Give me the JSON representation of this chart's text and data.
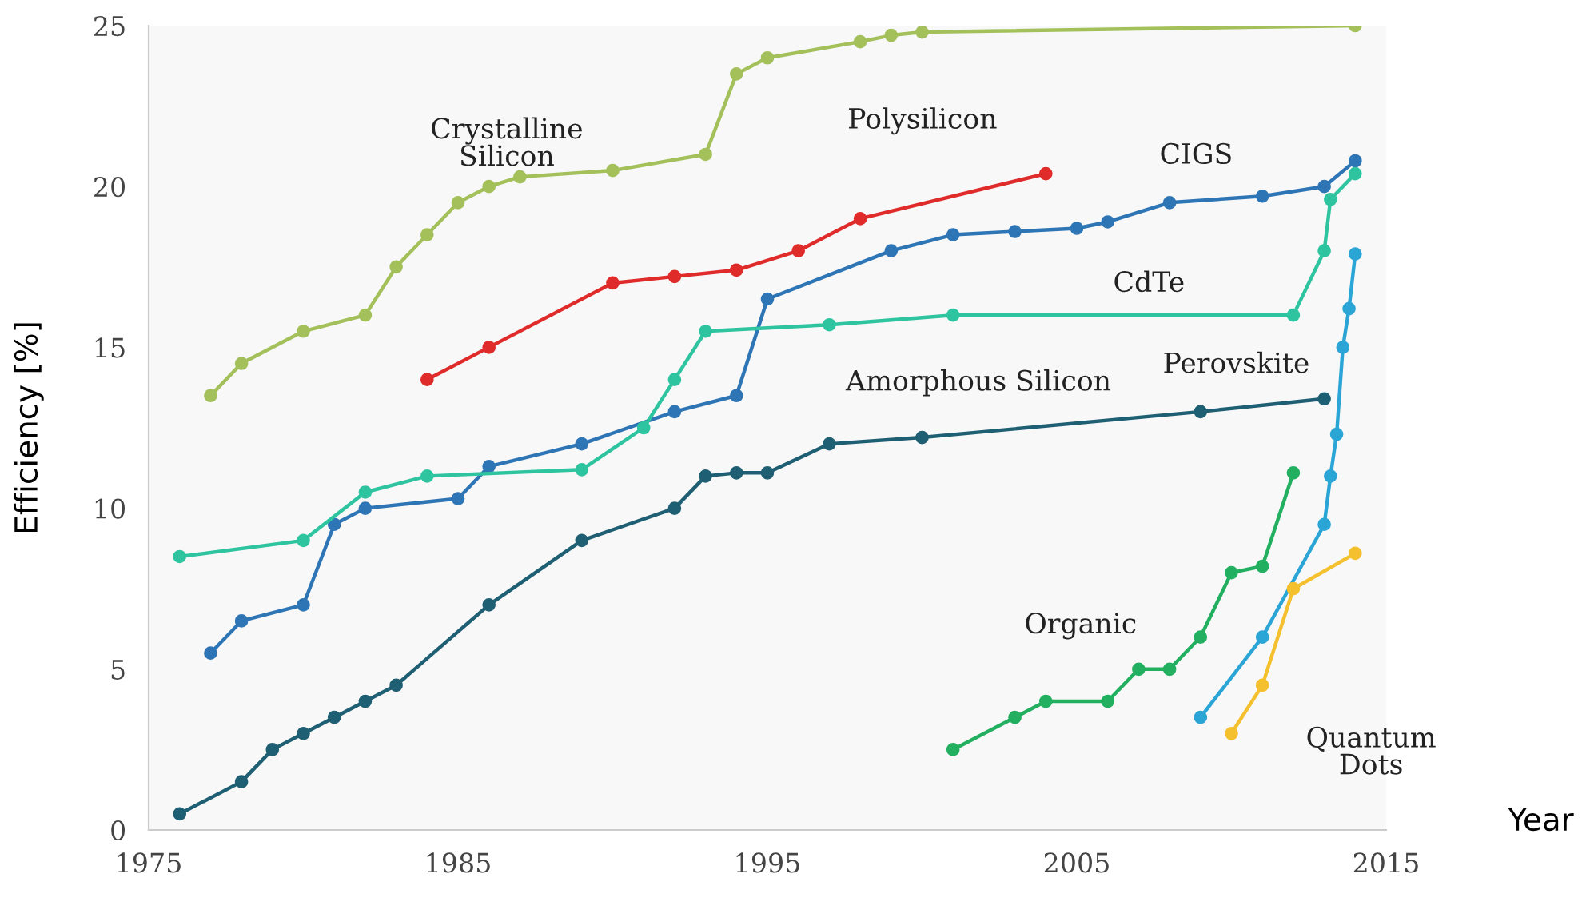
{
  "chart_data": {
    "type": "line",
    "xlabel": "Year",
    "ylabel": "Efficiency [%]",
    "xlim": [
      1975,
      2015
    ],
    "ylim": [
      0,
      25
    ],
    "xticks": [
      1975,
      1985,
      1995,
      2005,
      2015
    ],
    "yticks": [
      0,
      5,
      10,
      15,
      20,
      25
    ],
    "grid": false,
    "legend": false,
    "marker": "circle",
    "line_style": "solid",
    "series": [
      {
        "name": "Crystalline\nSilicon",
        "color": "#a3c05a",
        "x": [
          1977,
          1978,
          1980,
          1982,
          1983,
          1984,
          1985,
          1986,
          1987,
          1990,
          1993,
          1994,
          1995,
          1998,
          1999,
          2000,
          2014
        ],
        "values": [
          13.5,
          14.5,
          15.5,
          16.0,
          17.5,
          18.5,
          19.5,
          20.0,
          20.3,
          20.5,
          21.0,
          23.5,
          24.0,
          24.5,
          24.7,
          24.8,
          25.0
        ]
      },
      {
        "name": "Polysilicon",
        "color": "#e02b2b",
        "x": [
          1984,
          1986,
          1990,
          1992,
          1994,
          1996,
          1998,
          2004
        ],
        "values": [
          14.0,
          15.0,
          17.0,
          17.2,
          17.4,
          18.0,
          19.0,
          20.4
        ]
      },
      {
        "name": "CIGS",
        "color": "#2e75b6",
        "x": [
          1977,
          1978,
          1980,
          1981,
          1982,
          1985,
          1986,
          1989,
          1992,
          1994,
          1995,
          1999,
          2001,
          2003,
          2005,
          2006,
          2008,
          2011,
          2013,
          2014
        ],
        "values": [
          5.5,
          6.5,
          7.0,
          9.5,
          10.0,
          10.3,
          11.3,
          12.0,
          13.0,
          13.5,
          16.5,
          18.0,
          18.5,
          18.6,
          18.7,
          18.9,
          19.5,
          19.7,
          20.0,
          20.8
        ]
      },
      {
        "name": "CdTe",
        "color": "#2ec4a0",
        "x": [
          1976,
          1980,
          1982,
          1984,
          1989,
          1991,
          1992,
          1993,
          1997,
          2001,
          2012,
          2013,
          2013.2,
          2014
        ],
        "values": [
          8.5,
          9.0,
          10.5,
          11.0,
          11.2,
          12.5,
          14.0,
          15.5,
          15.7,
          16.0,
          16.0,
          18.0,
          19.6,
          20.4
        ]
      },
      {
        "name": "Perovskite",
        "color": "#2aa5d6",
        "x": [
          2009,
          2011,
          2013,
          2013.2,
          2013.4,
          2013.6,
          2013.8,
          2014
        ],
        "values": [
          3.5,
          6.0,
          9.5,
          11.0,
          12.3,
          15.0,
          16.2,
          17.9
        ]
      },
      {
        "name": "Amorphous Silicon",
        "color": "#1f5f73",
        "x": [
          1976,
          1978,
          1979,
          1980,
          1981,
          1982,
          1983,
          1986,
          1989,
          1992,
          1993,
          1994,
          1995,
          1997,
          2000,
          2009,
          2013
        ],
        "values": [
          0.5,
          1.5,
          2.5,
          3.0,
          3.5,
          4.0,
          4.5,
          7.0,
          9.0,
          10.0,
          11.0,
          11.1,
          11.1,
          12.0,
          12.2,
          13.0,
          13.4
        ]
      },
      {
        "name": "Organic",
        "color": "#22b060",
        "x": [
          2001,
          2003,
          2004,
          2006,
          2007,
          2008,
          2009,
          2010,
          2011,
          2012
        ],
        "values": [
          2.5,
          3.5,
          4.0,
          4.0,
          5.0,
          5.0,
          6.0,
          8.0,
          8.2,
          11.1
        ]
      },
      {
        "name": "Quantum\nDots",
        "color": "#f5c02e",
        "x": [
          2010,
          2011,
          2012,
          2014
        ],
        "values": [
          3.0,
          4.5,
          7.5,
          8.6
        ]
      }
    ]
  }
}
